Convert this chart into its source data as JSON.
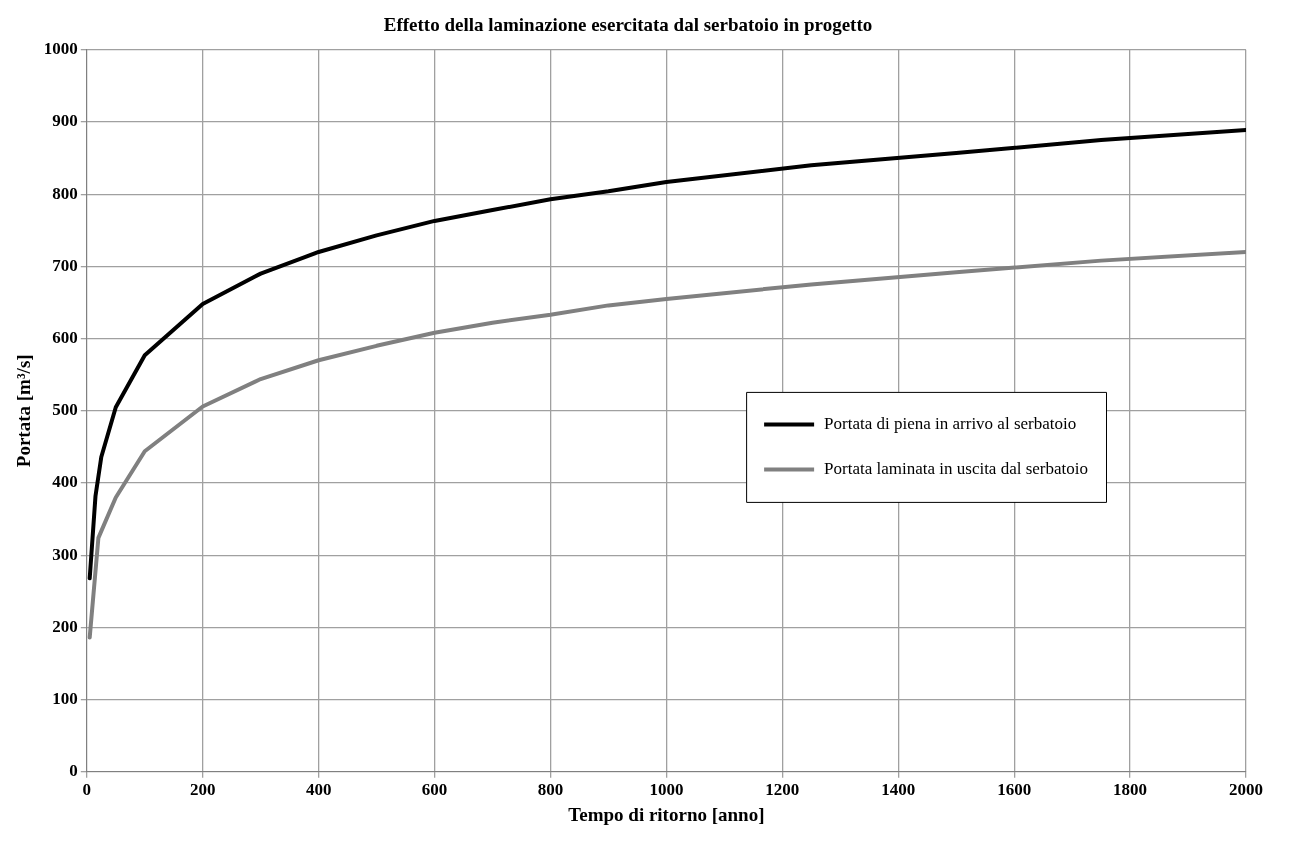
{
  "chart_data": {
    "type": "line",
    "title": "Effetto della laminazione esercitata dal serbatoio in progetto",
    "xlabel": "Tempo di ritorno [anno]",
    "ylabel": "Portata [m³/s]",
    "xlim": [
      0,
      2000
    ],
    "xticks": [
      0,
      200,
      400,
      600,
      800,
      1000,
      1200,
      1400,
      1600,
      1800,
      2000
    ],
    "ylim": [
      0,
      1000
    ],
    "yticks": [
      0,
      100,
      200,
      300,
      400,
      500,
      600,
      700,
      800,
      900,
      1000
    ],
    "grid": true,
    "legend": "right",
    "marker": "none",
    "line_style": "solid",
    "series": [
      {
        "name": "Portata di piena in arrivo al serbatoio",
        "color": "#000000",
        "x": [
          5,
          15,
          25,
          50,
          100,
          200,
          300,
          400,
          500,
          600,
          700,
          800,
          900,
          1000,
          1250,
          1500,
          1750,
          2000
        ],
        "values": [
          268,
          382,
          436,
          505,
          577,
          648,
          690,
          720,
          743,
          763,
          778,
          793,
          804,
          817,
          840,
          857,
          875,
          889
        ]
      },
      {
        "name": "Portata laminata in uscita dal serbatoio",
        "color": "#808080",
        "x": [
          5,
          20,
          50,
          100,
          200,
          300,
          400,
          500,
          600,
          700,
          800,
          900,
          1000,
          1250,
          1500,
          1750,
          2000
        ],
        "values": [
          186,
          324,
          380,
          444,
          506,
          544,
          570,
          590,
          608,
          622,
          633,
          646,
          655,
          675,
          692,
          708,
          720
        ]
      }
    ]
  }
}
